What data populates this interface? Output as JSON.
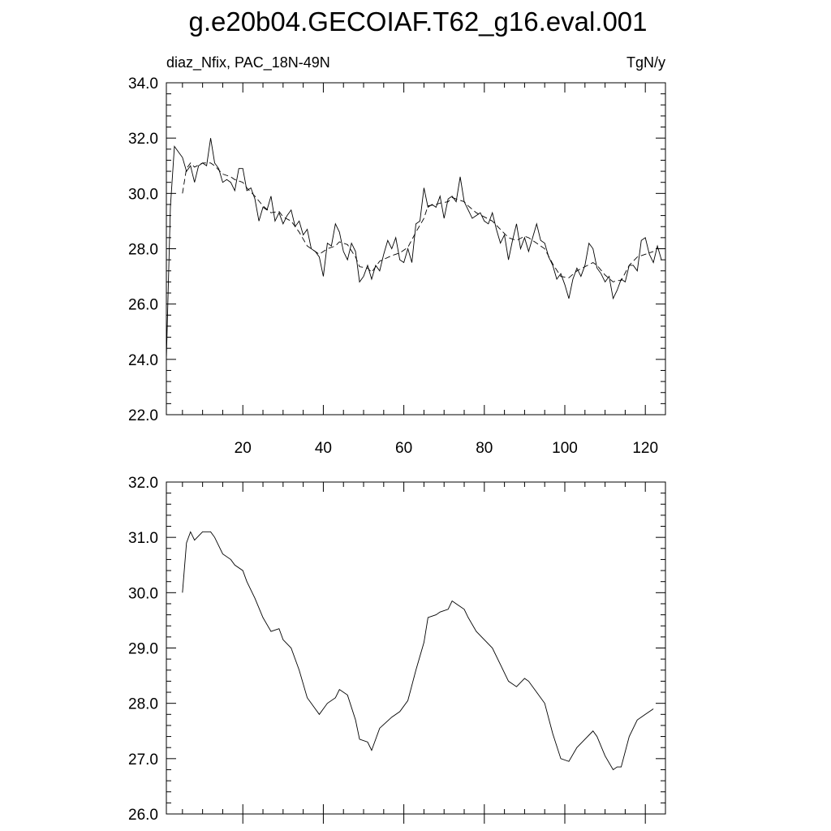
{
  "chart_data": [
    {
      "type": "line",
      "title": "g.e20b04.GECOIAF.T62_g16.eval.001",
      "left_subtitle": "diaz_Nfix, PAC_18N-49N",
      "right_subtitle": "TgN/y",
      "xlim": [
        1,
        125
      ],
      "xticks": [
        20,
        40,
        60,
        80,
        100,
        120
      ],
      "ylim": [
        22,
        34
      ],
      "yticks": [
        {
          "value": 22,
          "label": "22.0"
        },
        {
          "value": 24,
          "label": "24.0"
        },
        {
          "value": 26,
          "label": "26.0"
        },
        {
          "value": 28,
          "label": "28.0"
        },
        {
          "value": 30,
          "label": "30.0"
        },
        {
          "value": 32,
          "label": "32.0"
        },
        {
          "value": 34,
          "label": "34.0"
        }
      ],
      "series": [
        {
          "color": "#000000",
          "dash": false,
          "x": [
            1,
            2,
            3,
            4,
            5,
            6,
            7,
            8,
            9,
            10,
            11,
            12,
            13,
            14,
            15,
            16,
            17,
            18,
            19,
            20,
            21,
            22,
            23,
            24,
            25,
            26,
            27,
            28,
            29,
            30,
            31,
            32,
            33,
            34,
            35,
            36,
            37,
            38,
            39,
            40,
            41,
            42,
            43,
            44,
            45,
            46,
            47,
            48,
            49,
            50,
            51,
            52,
            53,
            54,
            55,
            56,
            57,
            58,
            59,
            60,
            61,
            62,
            63,
            64,
            65,
            66,
            67,
            68,
            69,
            70,
            71,
            72,
            73,
            74,
            75,
            76,
            77,
            78,
            79,
            80,
            81,
            82,
            83,
            84,
            85,
            86,
            87,
            88,
            89,
            90,
            91,
            92,
            93,
            94,
            95,
            96,
            97,
            98,
            99,
            100,
            101,
            102,
            103,
            104,
            105,
            106,
            107,
            108,
            109,
            110,
            111,
            112,
            113,
            114,
            115,
            116,
            117,
            118,
            119,
            120,
            121,
            122,
            123,
            124
          ],
          "values": [
            24.0,
            29.5,
            31.7,
            31.5,
            31.3,
            30.8,
            31.0,
            30.4,
            31.0,
            31.1,
            31.0,
            32.0,
            31.1,
            30.9,
            30.4,
            30.5,
            30.4,
            30.1,
            30.9,
            30.9,
            30.1,
            30.2,
            29.8,
            29.0,
            29.5,
            29.4,
            29.9,
            29.0,
            29.3,
            28.9,
            29.2,
            29.4,
            28.8,
            29.0,
            28.5,
            28.7,
            28.0,
            27.9,
            27.7,
            27.0,
            28.2,
            28.1,
            28.9,
            28.6,
            27.9,
            27.6,
            28.2,
            27.9,
            26.8,
            27.0,
            27.4,
            26.9,
            27.4,
            27.2,
            27.8,
            28.3,
            28.0,
            28.4,
            27.6,
            27.5,
            28.0,
            27.5,
            28.9,
            29.0,
            30.2,
            29.5,
            29.6,
            29.5,
            29.9,
            29.1,
            29.8,
            29.9,
            29.7,
            30.6,
            29.7,
            29.4,
            29.1,
            29.2,
            29.3,
            29.0,
            28.9,
            29.3,
            28.7,
            28.2,
            28.5,
            27.6,
            28.3,
            28.9,
            28.0,
            28.4,
            27.9,
            28.4,
            28.9,
            28.3,
            28.2,
            27.7,
            27.4,
            26.9,
            27.1,
            26.7,
            26.2,
            26.9,
            27.3,
            27.0,
            27.4,
            28.2,
            28.0,
            27.3,
            27.1,
            26.8,
            27.0,
            26.2,
            26.5,
            26.9,
            26.8,
            27.4,
            27.4,
            27.2,
            28.3,
            28.4,
            27.8,
            27.5,
            28.1,
            27.6
          ]
        },
        {
          "color": "#000000",
          "dash": true,
          "x": [
            5,
            6,
            7,
            8,
            10,
            12,
            13,
            15,
            17,
            18,
            20,
            21,
            23,
            25,
            27,
            29,
            30,
            32,
            34,
            36,
            38,
            39,
            41,
            43,
            44,
            46,
            48,
            49,
            51,
            52,
            54,
            57,
            59,
            61,
            63,
            65,
            66,
            68,
            69,
            71,
            72,
            73,
            75,
            76,
            78,
            80,
            82,
            84,
            86,
            88,
            90,
            91,
            93,
            95,
            97,
            99,
            101,
            103,
            105,
            107,
            108,
            110,
            112,
            113,
            114,
            116,
            118,
            120,
            122
          ],
          "values": [
            30.0,
            30.9,
            31.1,
            30.95,
            31.1,
            31.1,
            31.0,
            30.7,
            30.6,
            30.5,
            30.4,
            30.2,
            29.9,
            29.55,
            29.3,
            29.35,
            29.15,
            29.0,
            28.6,
            28.1,
            27.9,
            27.8,
            28.0,
            28.1,
            28.25,
            28.15,
            27.7,
            27.35,
            27.3,
            27.15,
            27.55,
            27.75,
            27.85,
            28.05,
            28.6,
            29.1,
            29.55,
            29.6,
            29.65,
            29.7,
            29.85,
            29.8,
            29.7,
            29.55,
            29.3,
            29.15,
            29.0,
            28.7,
            28.4,
            28.3,
            28.45,
            28.4,
            28.2,
            28.0,
            27.45,
            27.0,
            26.95,
            27.2,
            27.35,
            27.5,
            27.4,
            27.05,
            26.8,
            26.85,
            26.85,
            27.4,
            27.7,
            27.8,
            27.9
          ]
        }
      ]
    },
    {
      "type": "line",
      "xlim": [
        1,
        125
      ],
      "xticks": [
        20,
        40,
        60,
        80,
        100,
        120
      ],
      "xtick_labels": false,
      "ylim": [
        26,
        32
      ],
      "yticks": [
        {
          "value": 26,
          "label": "26.0"
        },
        {
          "value": 27,
          "label": "27.0"
        },
        {
          "value": 28,
          "label": "28.0"
        },
        {
          "value": 29,
          "label": "29.0"
        },
        {
          "value": 30,
          "label": "30.0"
        },
        {
          "value": 31,
          "label": "31.0"
        },
        {
          "value": 32,
          "label": "32.0"
        }
      ],
      "series": [
        {
          "color": "#000000",
          "dash": false,
          "x": [
            5,
            6,
            7,
            8,
            10,
            12,
            13,
            15,
            17,
            18,
            20,
            21,
            23,
            25,
            27,
            29,
            30,
            32,
            34,
            36,
            38,
            39,
            41,
            43,
            44,
            46,
            48,
            49,
            51,
            52,
            54,
            57,
            59,
            61,
            63,
            65,
            66,
            68,
            69,
            71,
            72,
            73,
            75,
            76,
            78,
            80,
            82,
            84,
            86,
            88,
            90,
            91,
            93,
            95,
            97,
            99,
            101,
            103,
            105,
            107,
            108,
            110,
            112,
            113,
            114,
            116,
            118,
            120,
            122
          ],
          "values": [
            30.0,
            30.9,
            31.1,
            30.95,
            31.1,
            31.1,
            31.0,
            30.7,
            30.6,
            30.5,
            30.4,
            30.2,
            29.9,
            29.55,
            29.3,
            29.35,
            29.15,
            29.0,
            28.6,
            28.1,
            27.9,
            27.8,
            28.0,
            28.1,
            28.25,
            28.15,
            27.7,
            27.35,
            27.3,
            27.15,
            27.55,
            27.75,
            27.85,
            28.05,
            28.6,
            29.1,
            29.55,
            29.6,
            29.65,
            29.7,
            29.85,
            29.8,
            29.7,
            29.55,
            29.3,
            29.15,
            29.0,
            28.7,
            28.4,
            28.3,
            28.45,
            28.4,
            28.2,
            28.0,
            27.45,
            27.0,
            26.95,
            27.2,
            27.35,
            27.5,
            27.4,
            27.05,
            26.8,
            26.85,
            26.85,
            27.4,
            27.7,
            27.8,
            27.9
          ]
        }
      ]
    }
  ]
}
